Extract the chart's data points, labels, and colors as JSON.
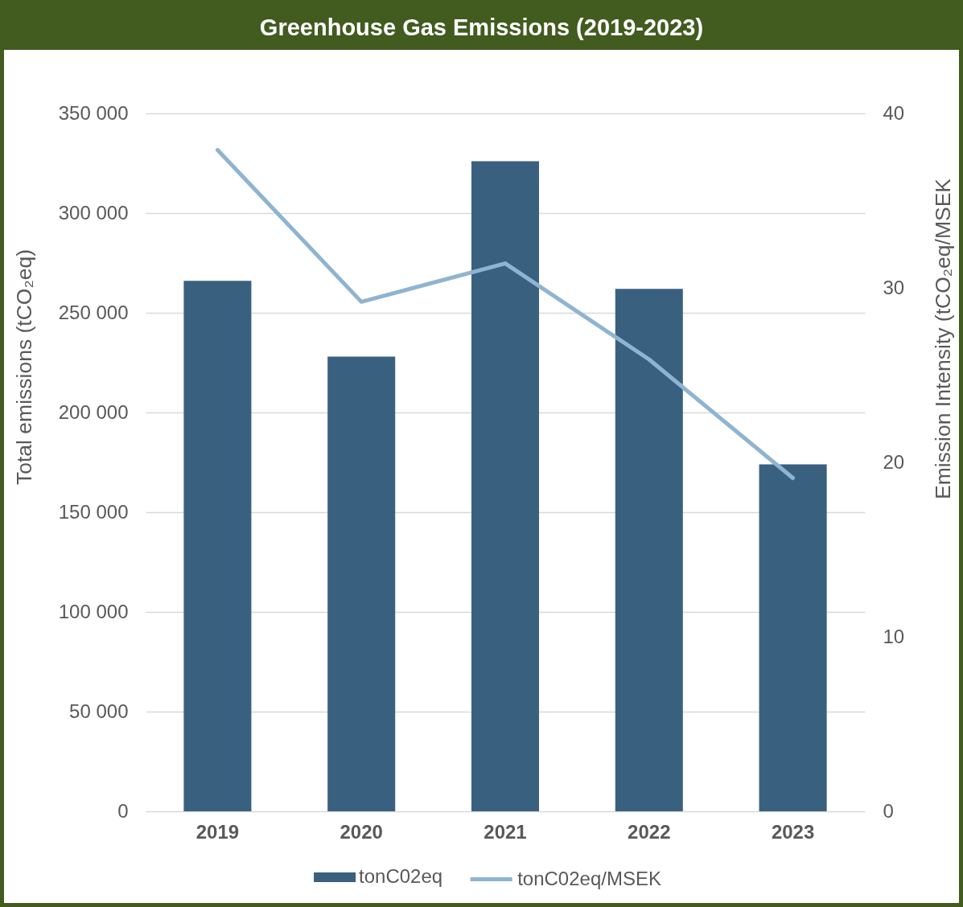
{
  "chart_data": {
    "type": "bar",
    "title": "Greenhouse Gas Emissions (2019-2023)",
    "ylabel": "Total emissions (tCO₂eq)",
    "y2label": "Emission Intensity (tCO₂eq/MSEK",
    "categories": [
      "2019",
      "2020",
      "2021",
      "2022",
      "2023"
    ],
    "series": [
      {
        "name": "tonC02eq",
        "color": "#3a6080",
        "values": [
          266000,
          228000,
          326000,
          262000,
          174000
        ]
      },
      {
        "name": "tonC02eq/MSEK",
        "type": "line",
        "axis": "y2",
        "color": "#8eb4d1",
        "values": [
          37.9,
          29.2,
          31.4,
          25.9,
          19.1
        ]
      }
    ],
    "ylim": [
      0,
      350000
    ],
    "yticks": [
      0,
      {
        "value": 50000,
        "label": "50 000"
      },
      {
        "value": 100000,
        "label": "100 000"
      },
      {
        "value": 150000,
        "label": "150 000"
      },
      {
        "value": 200000,
        "label": "200 000"
      },
      {
        "value": 250000,
        "label": "250 000"
      },
      {
        "value": 300000,
        "label": "300 000"
      },
      {
        "value": 350000,
        "label": "350 000"
      }
    ],
    "y2lim": [
      0,
      40
    ],
    "y2ticks": [
      0,
      10,
      20,
      30,
      40
    ],
    "grid": "y",
    "legend": "bottom"
  }
}
